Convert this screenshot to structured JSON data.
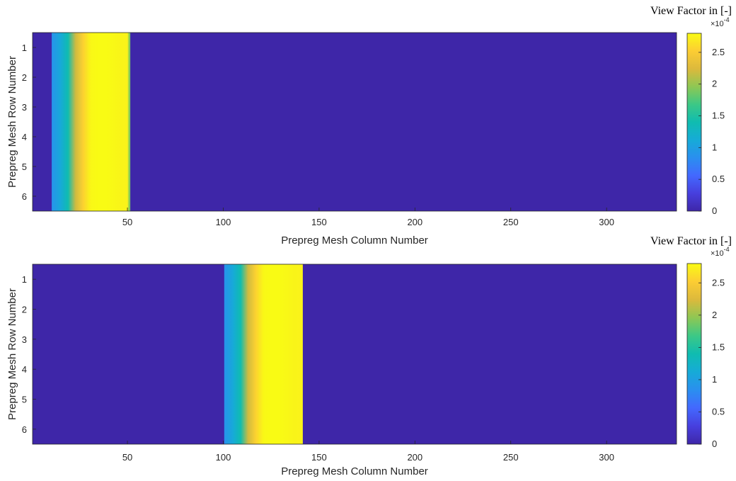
{
  "chart_data": [
    {
      "type": "heatmap",
      "title": "",
      "xlabel": "Prepreg Mesh Column Number",
      "ylabel": "Prepreg Mesh Row Number",
      "xlim": [
        1,
        336
      ],
      "ylim": [
        1,
        6
      ],
      "x_ticks": [
        50,
        100,
        150,
        200,
        250,
        300
      ],
      "y_ticks": [
        1,
        2,
        3,
        4,
        5,
        6
      ],
      "rows": 6,
      "columns": 336,
      "colormap": "parula",
      "colorbar": {
        "title": "View Factor in [-]",
        "exponent_base": "×10",
        "exponent": "-4",
        "ticks": [
          "0",
          "0.5",
          "1",
          "1.5",
          "2",
          "2.5"
        ],
        "tick_values": [
          0,
          0.5,
          1,
          1.5,
          2,
          2.5
        ],
        "range": [
          0,
          2.8
        ]
      },
      "band": {
        "col_start": 11,
        "col_end": 51,
        "profile_cols": [
          11,
          15,
          19,
          23,
          27,
          31,
          35,
          39,
          43,
          47,
          50,
          51
        ],
        "profile_values": [
          0.9,
          1.1,
          1.4,
          2.2,
          2.55,
          2.78,
          2.8,
          2.8,
          2.78,
          2.76,
          2.75,
          1.9
        ]
      },
      "background_value": 0
    },
    {
      "type": "heatmap",
      "title": "",
      "xlabel": "Prepreg Mesh Column Number",
      "ylabel": "Prepreg Mesh Row Number",
      "xlim": [
        1,
        336
      ],
      "ylim": [
        1,
        6
      ],
      "x_ticks": [
        50,
        100,
        150,
        200,
        250,
        300
      ],
      "y_ticks": [
        1,
        2,
        3,
        4,
        5,
        6
      ],
      "rows": 6,
      "columns": 336,
      "colormap": "parula",
      "colorbar": {
        "title": "View Factor in [-]",
        "exponent_base": "×10",
        "exponent": "-4",
        "ticks": [
          "0",
          "0.5",
          "1",
          "1.5",
          "2",
          "2.5"
        ],
        "tick_values": [
          0,
          0.5,
          1,
          1.5,
          2,
          2.5
        ],
        "range": [
          0,
          2.8
        ]
      },
      "band": {
        "col_start": 101,
        "col_end": 141,
        "profile_cols": [
          101,
          105,
          109,
          113,
          117,
          121,
          125,
          129,
          133,
          137,
          141
        ],
        "profile_values": [
          0.9,
          1.1,
          1.4,
          2.2,
          2.55,
          2.78,
          2.8,
          2.8,
          2.78,
          2.76,
          2.75
        ]
      },
      "background_value": 0
    }
  ]
}
